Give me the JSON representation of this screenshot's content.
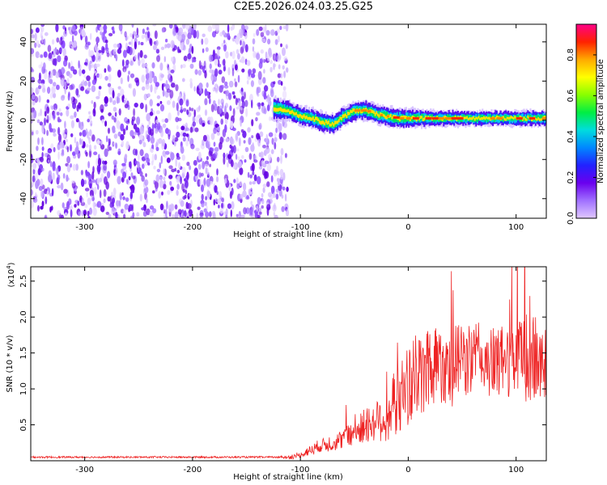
{
  "title": "C2E5.2026.024.03.25.G25",
  "chart_data": [
    {
      "type": "heatmap",
      "xlabel": "Height of straight line (km)",
      "ylabel": "Frequency (Hz)",
      "xlim": [
        -350,
        128
      ],
      "ylim": [
        -50,
        49
      ],
      "xticks": [
        -300,
        -200,
        -100,
        0,
        100
      ],
      "yticks": [
        -40,
        -20,
        0,
        20,
        40
      ],
      "colorbar": {
        "label": "Normalized spectral amplitude",
        "range": [
          0,
          0.95
        ],
        "ticks": [
          0.0,
          0.2,
          0.4,
          0.6,
          0.8
        ],
        "tick_labels": [
          "0.0",
          "0.2",
          "0.4",
          "0.6",
          "0.8"
        ],
        "colormap": [
          "#e0c8ff",
          "#a070ff",
          "#6a00ee",
          "#2222ff",
          "#0088ff",
          "#00dddd",
          "#00ee44",
          "#88ff00",
          "#ffff00",
          "#ffaa00",
          "#ff2200",
          "#ff0088"
        ]
      },
      "noise_region": {
        "x": [
          -350,
          -112
        ],
        "y": [
          -50,
          49
        ]
      },
      "signal_track": {
        "x": [
          -125,
          -112,
          -100,
          -90,
          -80,
          -70,
          -60,
          -50,
          -40,
          -30,
          -20,
          -10,
          0,
          20,
          40,
          60,
          80,
          100,
          128
        ],
        "center_freq": [
          6,
          5,
          2,
          1,
          -1,
          -2,
          2,
          5,
          5,
          3,
          2,
          1,
          1,
          1,
          1,
          1,
          1,
          1,
          1
        ],
        "half_width": [
          6,
          5,
          5,
          5,
          5,
          5,
          5,
          5,
          5,
          5,
          5,
          5,
          5,
          4,
          4,
          4,
          4,
          4,
          4
        ]
      }
    },
    {
      "type": "line",
      "xlabel": "Height of straight line (km)",
      "ylabel": "SNR (10 * v/v)",
      "y_scale_label": "(x10",
      "y_scale_exp": "4",
      "xlim": [
        -350,
        128
      ],
      "ylim": [
        0,
        27000
      ],
      "xticks": [
        -300,
        -200,
        -100,
        0,
        100
      ],
      "yticks": [
        5000,
        10000,
        15000,
        20000,
        25000
      ],
      "ytick_labels": [
        "0.5",
        "1.0",
        "1.5",
        "2.0",
        "2.5"
      ],
      "color": "#ee2222",
      "series": [
        {
          "x": [
            -350,
            -300,
            -200,
            -130,
            -110,
            -100,
            -90,
            -80,
            -70,
            -60,
            -50,
            -40,
            -30,
            -20,
            -10,
            0,
            10,
            20,
            30,
            40,
            50,
            60,
            70,
            80,
            90,
            100,
            110,
            120,
            128
          ],
          "values": [
            500,
            500,
            500,
            500,
            500,
            800,
            1500,
            2200,
            2500,
            3000,
            4000,
            4800,
            5500,
            6000,
            8500,
            10500,
            11500,
            13500,
            14000,
            13000,
            14000,
            14500,
            14000,
            13500,
            14000,
            14500,
            14000,
            14000,
            13500
          ]
        }
      ],
      "peak_amplitude": [
        0,
        0,
        0,
        0,
        200,
        400,
        700,
        900,
        1200,
        1500,
        2000,
        2500,
        3000,
        3500,
        5000,
        5500,
        6000,
        6500,
        6000,
        5500,
        5500,
        5000,
        5000,
        5000,
        5000,
        6000,
        6500,
        6000,
        5000
      ]
    }
  ]
}
